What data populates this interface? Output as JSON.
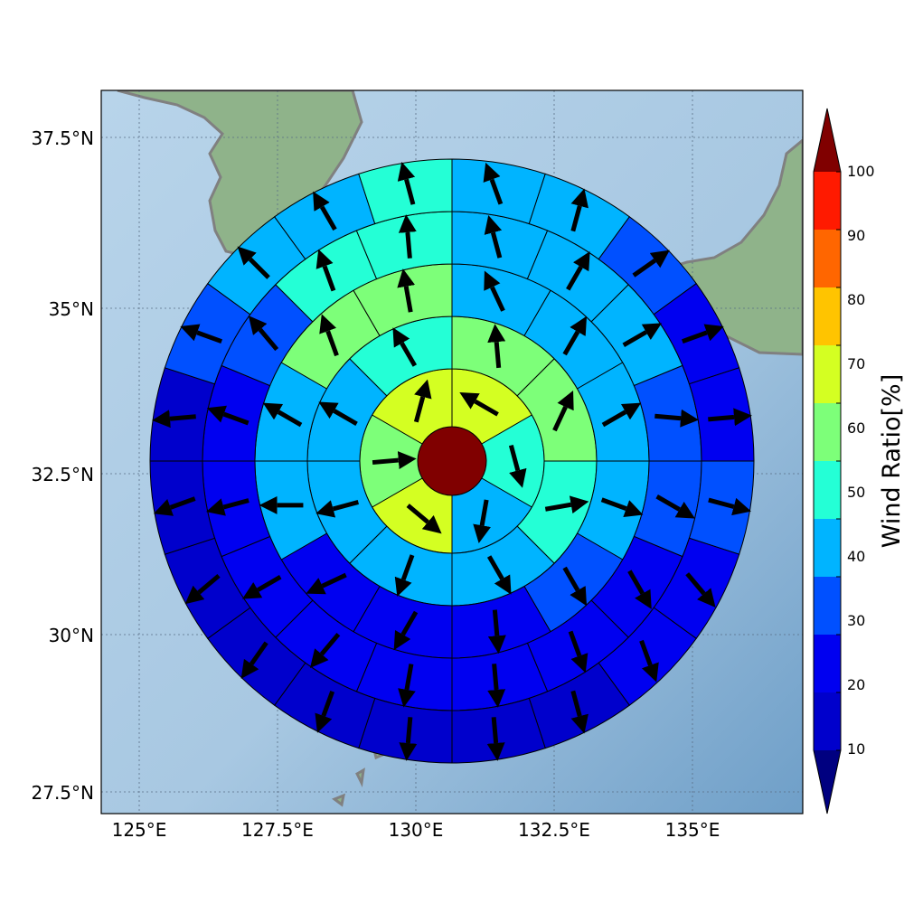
{
  "map": {
    "lon_ticks": [
      "125°E",
      "127.5°E",
      "130°E",
      "132.5°E",
      "135°E"
    ],
    "lat_ticks": [
      "27.5°N",
      "30°N",
      "32.5°N",
      "35°N",
      "37.5°N"
    ]
  },
  "colorbar": {
    "label": "Wind Ratio[%]",
    "ticks": [
      "10",
      "20",
      "30",
      "40",
      "50",
      "60",
      "70",
      "80",
      "90",
      "100"
    ],
    "colors": [
      "#0000cc",
      "#0000f0",
      "#0050ff",
      "#00b4ff",
      "#24ffd6",
      "#7dff79",
      "#d4ff22",
      "#ffc400",
      "#ff6600",
      "#ff1a00"
    ],
    "under_color": "#000080",
    "over_color": "#800000"
  },
  "chart_data": {
    "type": "polar-grid",
    "rings": [
      {
        "sectors": 1,
        "values": [
          100
        ],
        "dirs": []
      },
      {
        "sectors": 6,
        "values": [
          72,
          55,
          45,
          78,
          65,
          75
        ],
        "dirs": [
          -60,
          165,
          190,
          130,
          85,
          15
        ]
      },
      {
        "sectors": 8,
        "values": [
          68,
          68,
          50,
          45,
          42,
          48,
          45,
          55
        ],
        "dirs": [
          -5,
          25,
          80,
          150,
          200,
          255,
          300,
          330
        ]
      },
      {
        "sectors": 12,
        "values": [
          45,
          45,
          45,
          44,
          38,
          25,
          25,
          25,
          45,
          45,
          60,
          63
        ],
        "dirs": [
          -25,
          30,
          60,
          110,
          150,
          175,
          210,
          245,
          270,
          300,
          340,
          350
        ]
      },
      {
        "sectors": 16,
        "values": [
          45,
          45,
          40,
          32,
          32,
          25,
          22,
          22,
          22,
          22,
          22,
          22,
          28,
          35,
          55,
          55
        ],
        "dirs": [
          -15,
          30,
          60,
          95,
          120,
          150,
          160,
          175,
          190,
          220,
          240,
          255,
          290,
          320,
          340,
          355
        ]
      },
      {
        "sectors": 20,
        "values": [
          45,
          45,
          35,
          25,
          25,
          35,
          28,
          22,
          12,
          12,
          12,
          12,
          15,
          15,
          12,
          12,
          35,
          45,
          45,
          55
        ],
        "dirs": [
          -20,
          15,
          55,
          70,
          85,
          105,
          140,
          160,
          165,
          175,
          185,
          200,
          215,
          230,
          250,
          265,
          290,
          315,
          330,
          345
        ]
      }
    ]
  }
}
